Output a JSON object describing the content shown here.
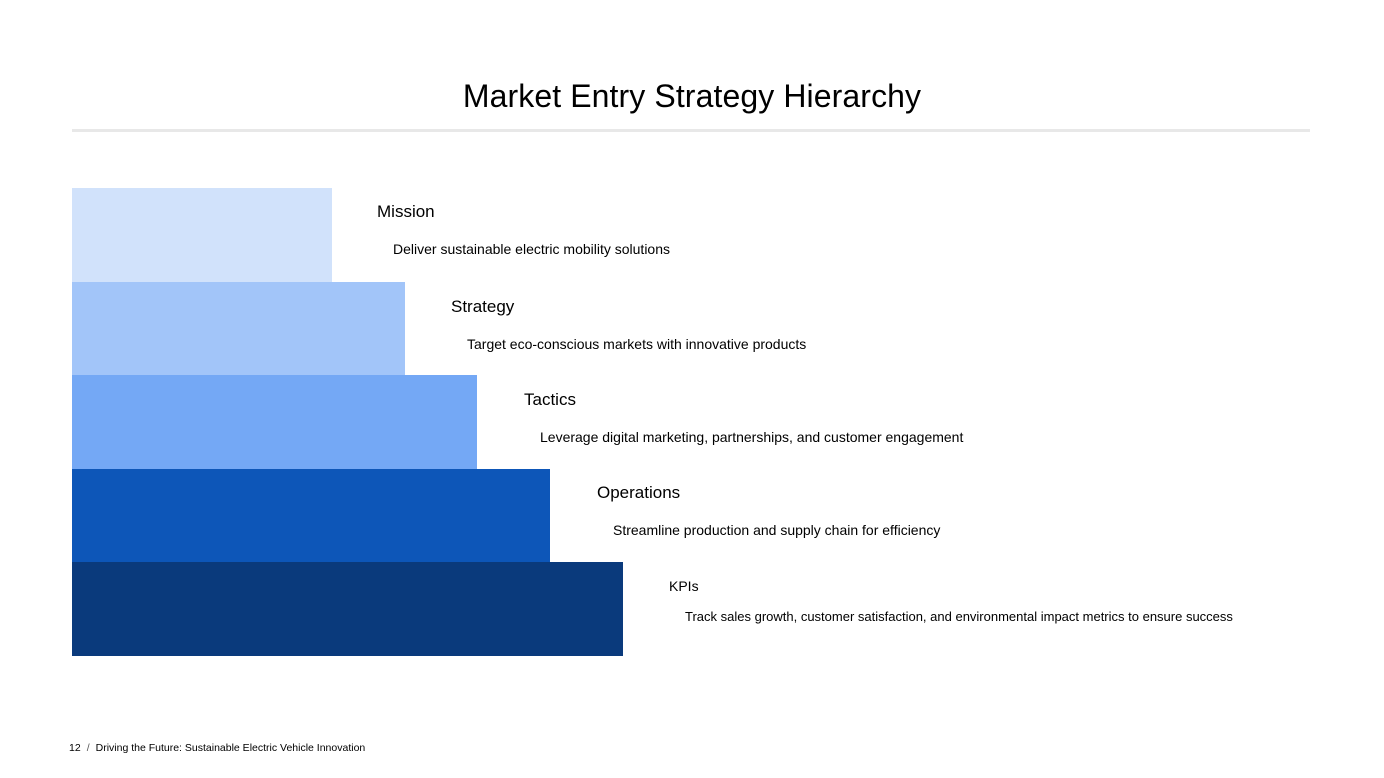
{
  "slide": {
    "title": "Market Entry Strategy Hierarchy"
  },
  "hierarchy": {
    "tiers": [
      {
        "heading": "Mission",
        "description": "Deliver sustainable electric mobility solutions",
        "color": "#d1e2fb"
      },
      {
        "heading": "Strategy",
        "description": "Target eco-conscious markets with innovative products",
        "color": "#a2c5f9"
      },
      {
        "heading": "Tactics",
        "description": "Leverage digital marketing, partnerships, and customer engagement",
        "color": "#74a8f5"
      },
      {
        "heading": "Operations",
        "description": "Streamline production and supply chain for efficiency",
        "color": "#0d56b8"
      },
      {
        "heading": "KPIs",
        "description": "Track sales growth, customer satisfaction, and environmental impact metrics to ensure success",
        "color": "#0a3a7c"
      }
    ]
  },
  "footer": {
    "page_number": "12",
    "separator": "/",
    "presentation_title": "Driving the Future: Sustainable Electric Vehicle Innovation"
  }
}
